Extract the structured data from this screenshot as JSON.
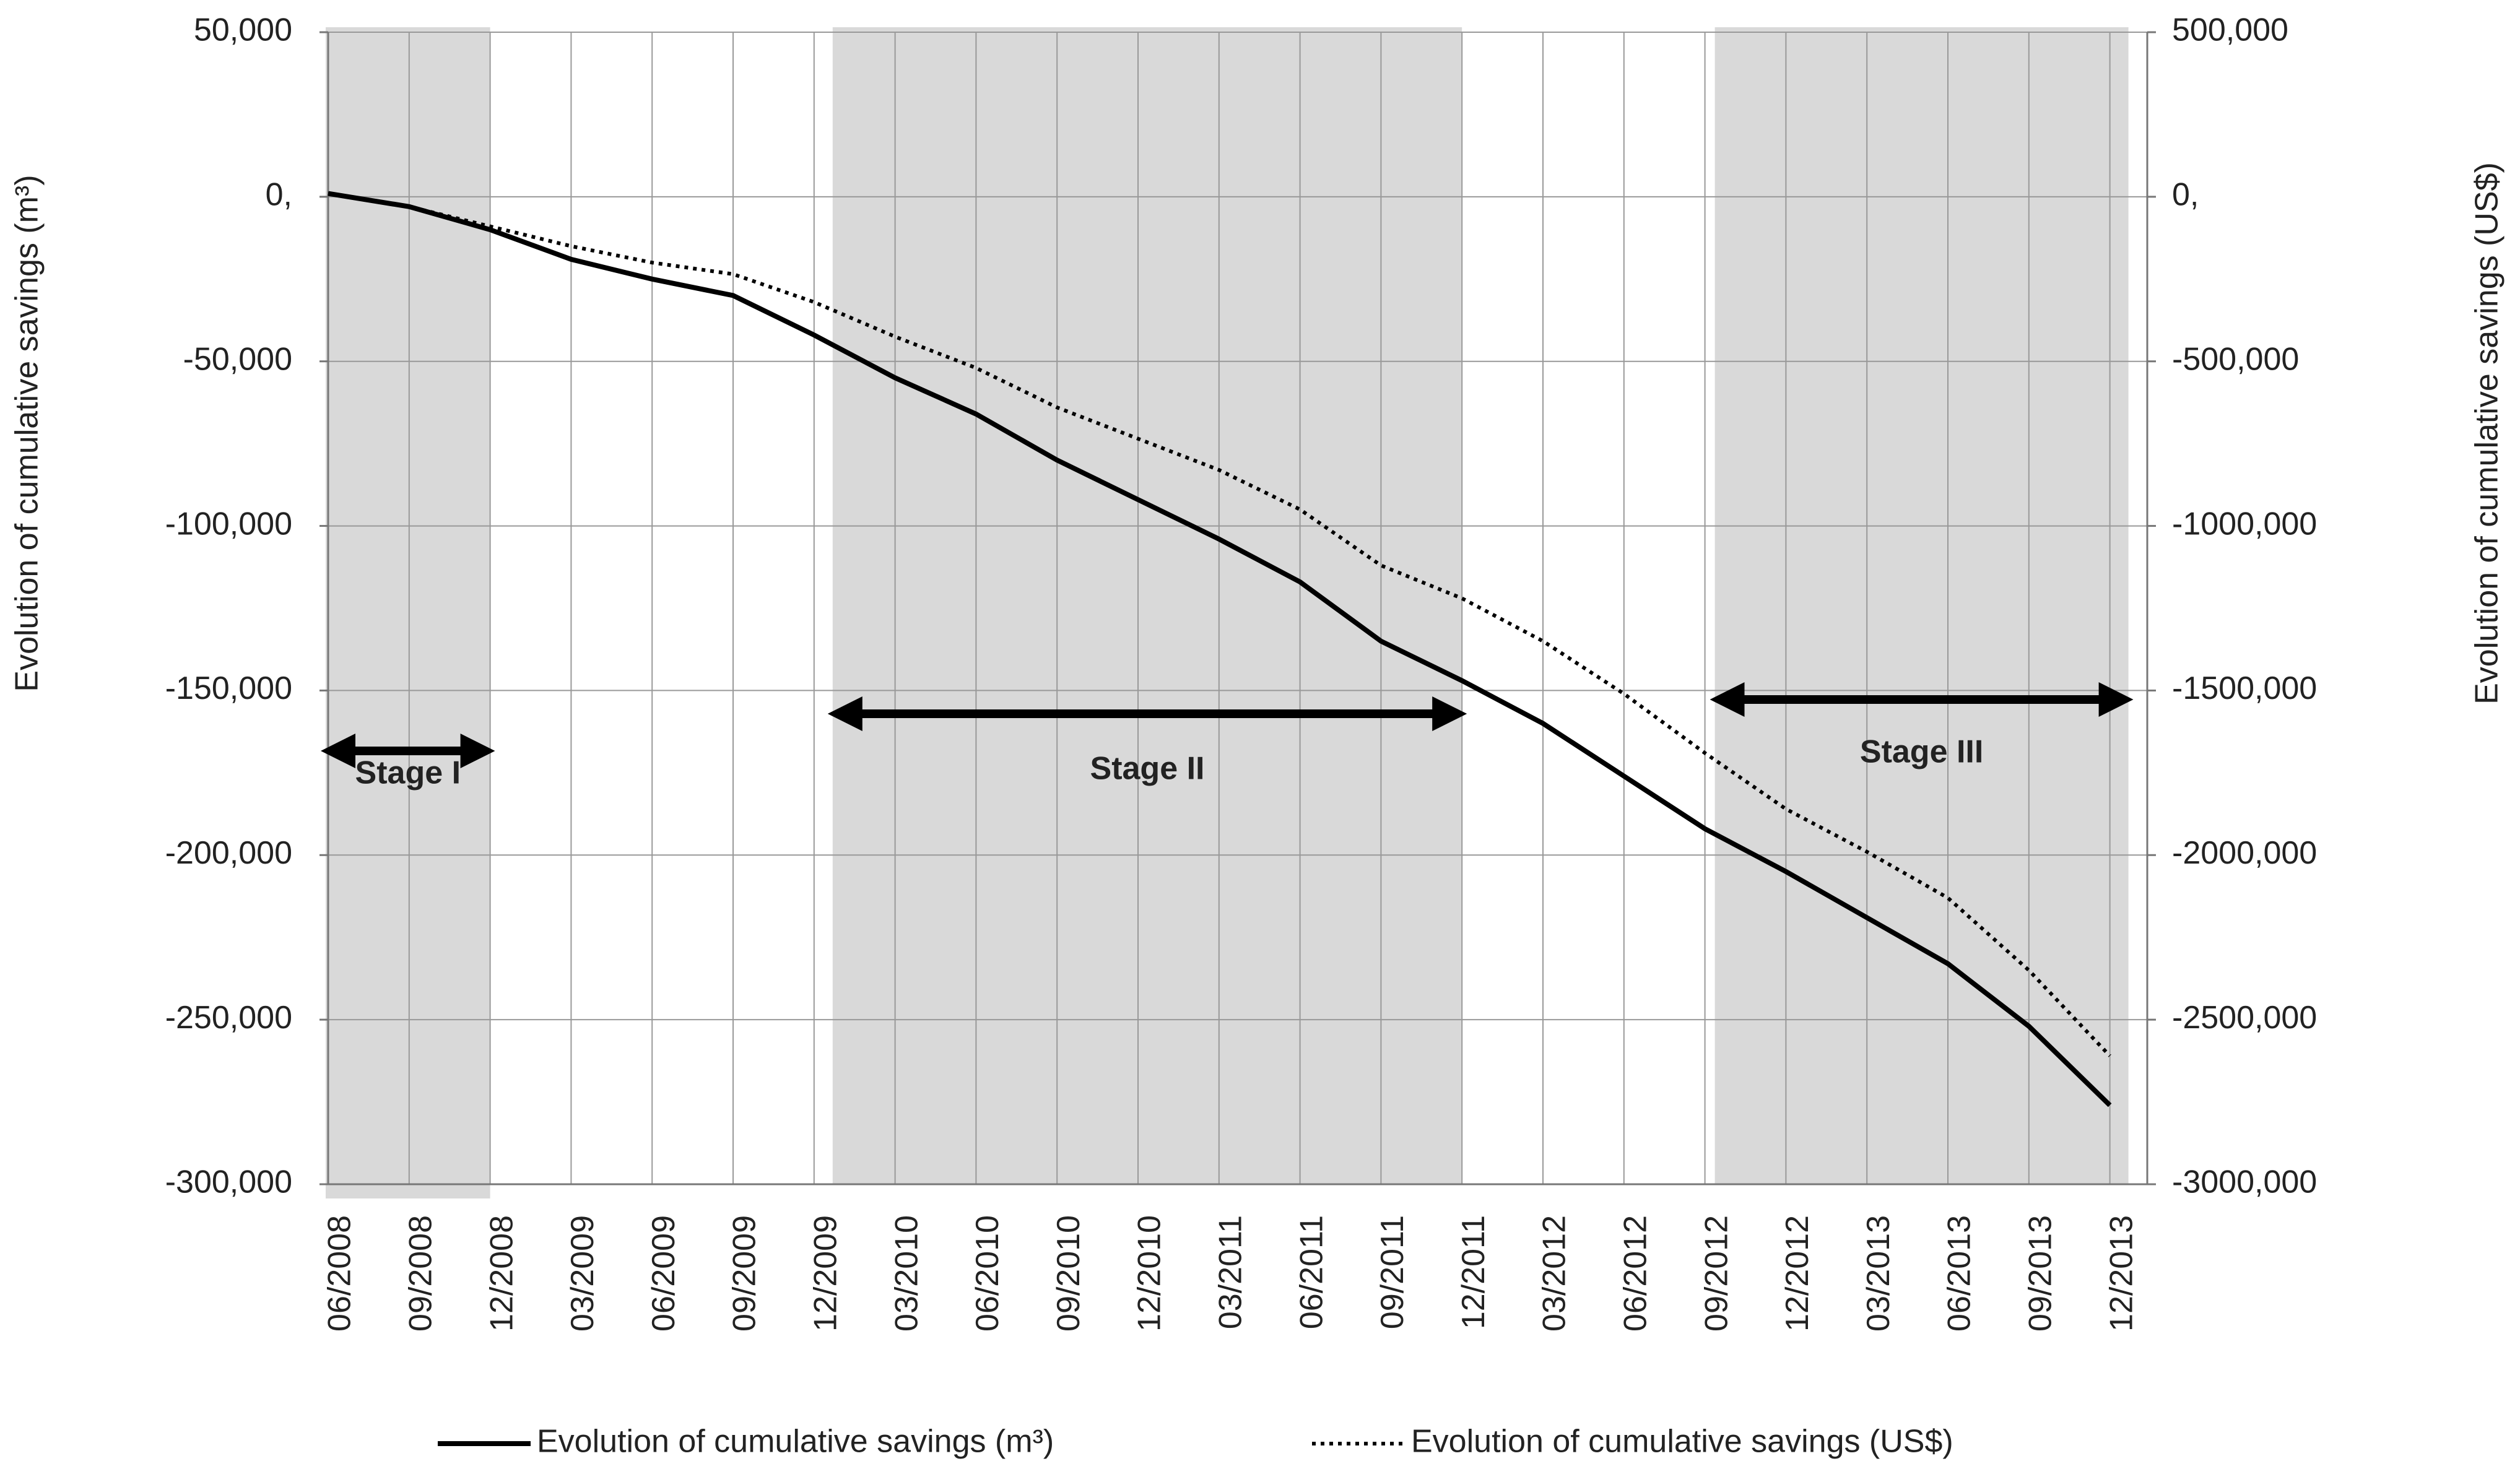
{
  "chart_data": {
    "type": "line",
    "y_label": "Evolution of cumulative savings (m³)",
    "y2_label": "Evolution of cumulative savings (US$)",
    "categories": [
      "06/2008",
      "09/2008",
      "12/2008",
      "03/2009",
      "06/2009",
      "09/2009",
      "12/2009",
      "03/2010",
      "06/2010",
      "09/2010",
      "12/2010",
      "03/2011",
      "06/2011",
      "09/2011",
      "12/2011",
      "03/2012",
      "06/2012",
      "09/2012",
      "12/2012",
      "03/2013",
      "06/2013",
      "09/2013",
      "12/2013"
    ],
    "series": [
      {
        "name": "Evolution of cumulative savings (m³)",
        "color": "#000000",
        "style": "solid",
        "values": [
          1000,
          -3000,
          -10000,
          -19000,
          -25000,
          -30000,
          -42000,
          -55000,
          -66000,
          -80000,
          -92000,
          -104000,
          -117000,
          -135000,
          -147000,
          -160000,
          -176000,
          -192000,
          -205000,
          -219000,
          -233000,
          -252000,
          -276000
        ]
      },
      {
        "name": "Evolution of cumulative savings (US$)",
        "color": "#000000",
        "style": "dotted",
        "axis": "y2",
        "values": [
          10000,
          -30000,
          -90000,
          -150000,
          -200000,
          -235000,
          -320000,
          -425000,
          -520000,
          -640000,
          -735000,
          -830000,
          -950000,
          -1120000,
          -1220000,
          -1350000,
          -1510000,
          -1690000,
          -1860000,
          -1990000,
          -2130000,
          -2350000,
          -2610000
        ]
      }
    ],
    "ylim": [
      -300000,
      50000
    ],
    "yticks": [
      {
        "value": -300000,
        "label": "-300,000"
      },
      {
        "value": -250000,
        "label": "-250,000"
      },
      {
        "value": -200000,
        "label": "-200,000"
      },
      {
        "value": -150000,
        "label": "-150,000"
      },
      {
        "value": -100000,
        "label": "-100,000"
      },
      {
        "value": -50000,
        "label": "-50,000"
      },
      {
        "value": 0,
        "label": "0,"
      },
      {
        "value": 50000,
        "label": "50,000"
      }
    ],
    "y2lim": [
      -3000000,
      500000
    ],
    "y2ticks": [
      {
        "value": -3000000,
        "label": "-3000,000"
      },
      {
        "value": -2500000,
        "label": "-2500,000"
      },
      {
        "value": -2000000,
        "label": "-2000,000"
      },
      {
        "value": -1500000,
        "label": "-1500,000"
      },
      {
        "value": -1000000,
        "label": "-1000,000"
      },
      {
        "value": -500000,
        "label": "-500,000"
      },
      {
        "value": 0,
        "label": "0,"
      },
      {
        "value": 500000,
        "label": "500,000"
      }
    ],
    "grid": true,
    "legend": "bottom",
    "stages": [
      {
        "label": "Stage I",
        "start": "06/2008",
        "end": "12/2008"
      },
      {
        "label": "Stage II",
        "start": "12/2009",
        "end": "12/2011"
      },
      {
        "label": "Stage III",
        "start": "09/2012",
        "end": "12/2013"
      }
    ]
  }
}
